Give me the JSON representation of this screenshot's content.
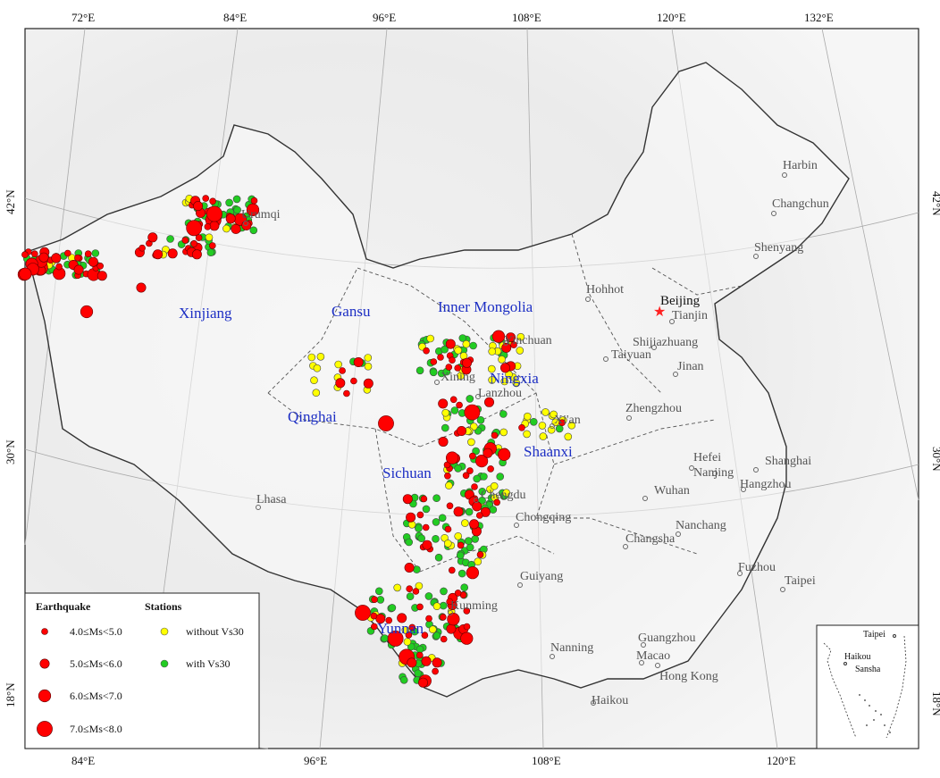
{
  "graticule": {
    "top": [
      "72°E",
      "84°E",
      "96°E",
      "108°E",
      "120°E",
      "132°E"
    ],
    "bottom": [
      "84°E",
      "96°E",
      "108°E",
      "120°E"
    ],
    "left": [
      "42°N",
      "30°N",
      "18°N"
    ],
    "right": [
      "42°N",
      "30°N",
      "18°N"
    ]
  },
  "provinces": [
    "Xinjiang",
    "Gansu",
    "Inner Mongolia",
    "Qinghai",
    "Ningxia",
    "Shaanxi",
    "Sichuan",
    "Yunnan"
  ],
  "cities": [
    "Urumqi",
    "Harbin",
    "Changchun",
    "Shenyang",
    "Hohhot",
    "Beijing",
    "Tianjin",
    "Yinchuan",
    "Shijiazhuang",
    "Taiyuan",
    "Jinan",
    "Xining",
    "Lanzhou",
    "Zhengzhou",
    "Xi'an",
    "Hefei",
    "Nanjing",
    "Shanghai",
    "Hangzhou",
    "Wuhan",
    "Chengdu",
    "Lhasa",
    "Chongqing",
    "Nanchang",
    "Changsha",
    "Fuzhou",
    "Taipei",
    "Guiyang",
    "Kunming",
    "Nanning",
    "Guangzhou",
    "Macao",
    "Hong Kong",
    "Haikou"
  ],
  "legend": {
    "earthquake_title": "Earthquake",
    "stations_title": "Stations",
    "magnitudes": [
      "4.0≤Ms<5.0",
      "5.0≤Ms<6.0",
      "6.0≤Ms<7.0",
      "7.0≤Ms<8.0"
    ],
    "station_types": [
      "without Vs30",
      "with Vs30"
    ]
  },
  "inset": {
    "labels": [
      "Taipei",
      "Haikou",
      "Sansha"
    ]
  },
  "colors": {
    "earthquake": "#ff0000",
    "station_without_vs30": "#ffff00",
    "station_with_vs30": "#22cc22",
    "capital_star": "#ff2222",
    "province_label": "#1d2fc4"
  }
}
